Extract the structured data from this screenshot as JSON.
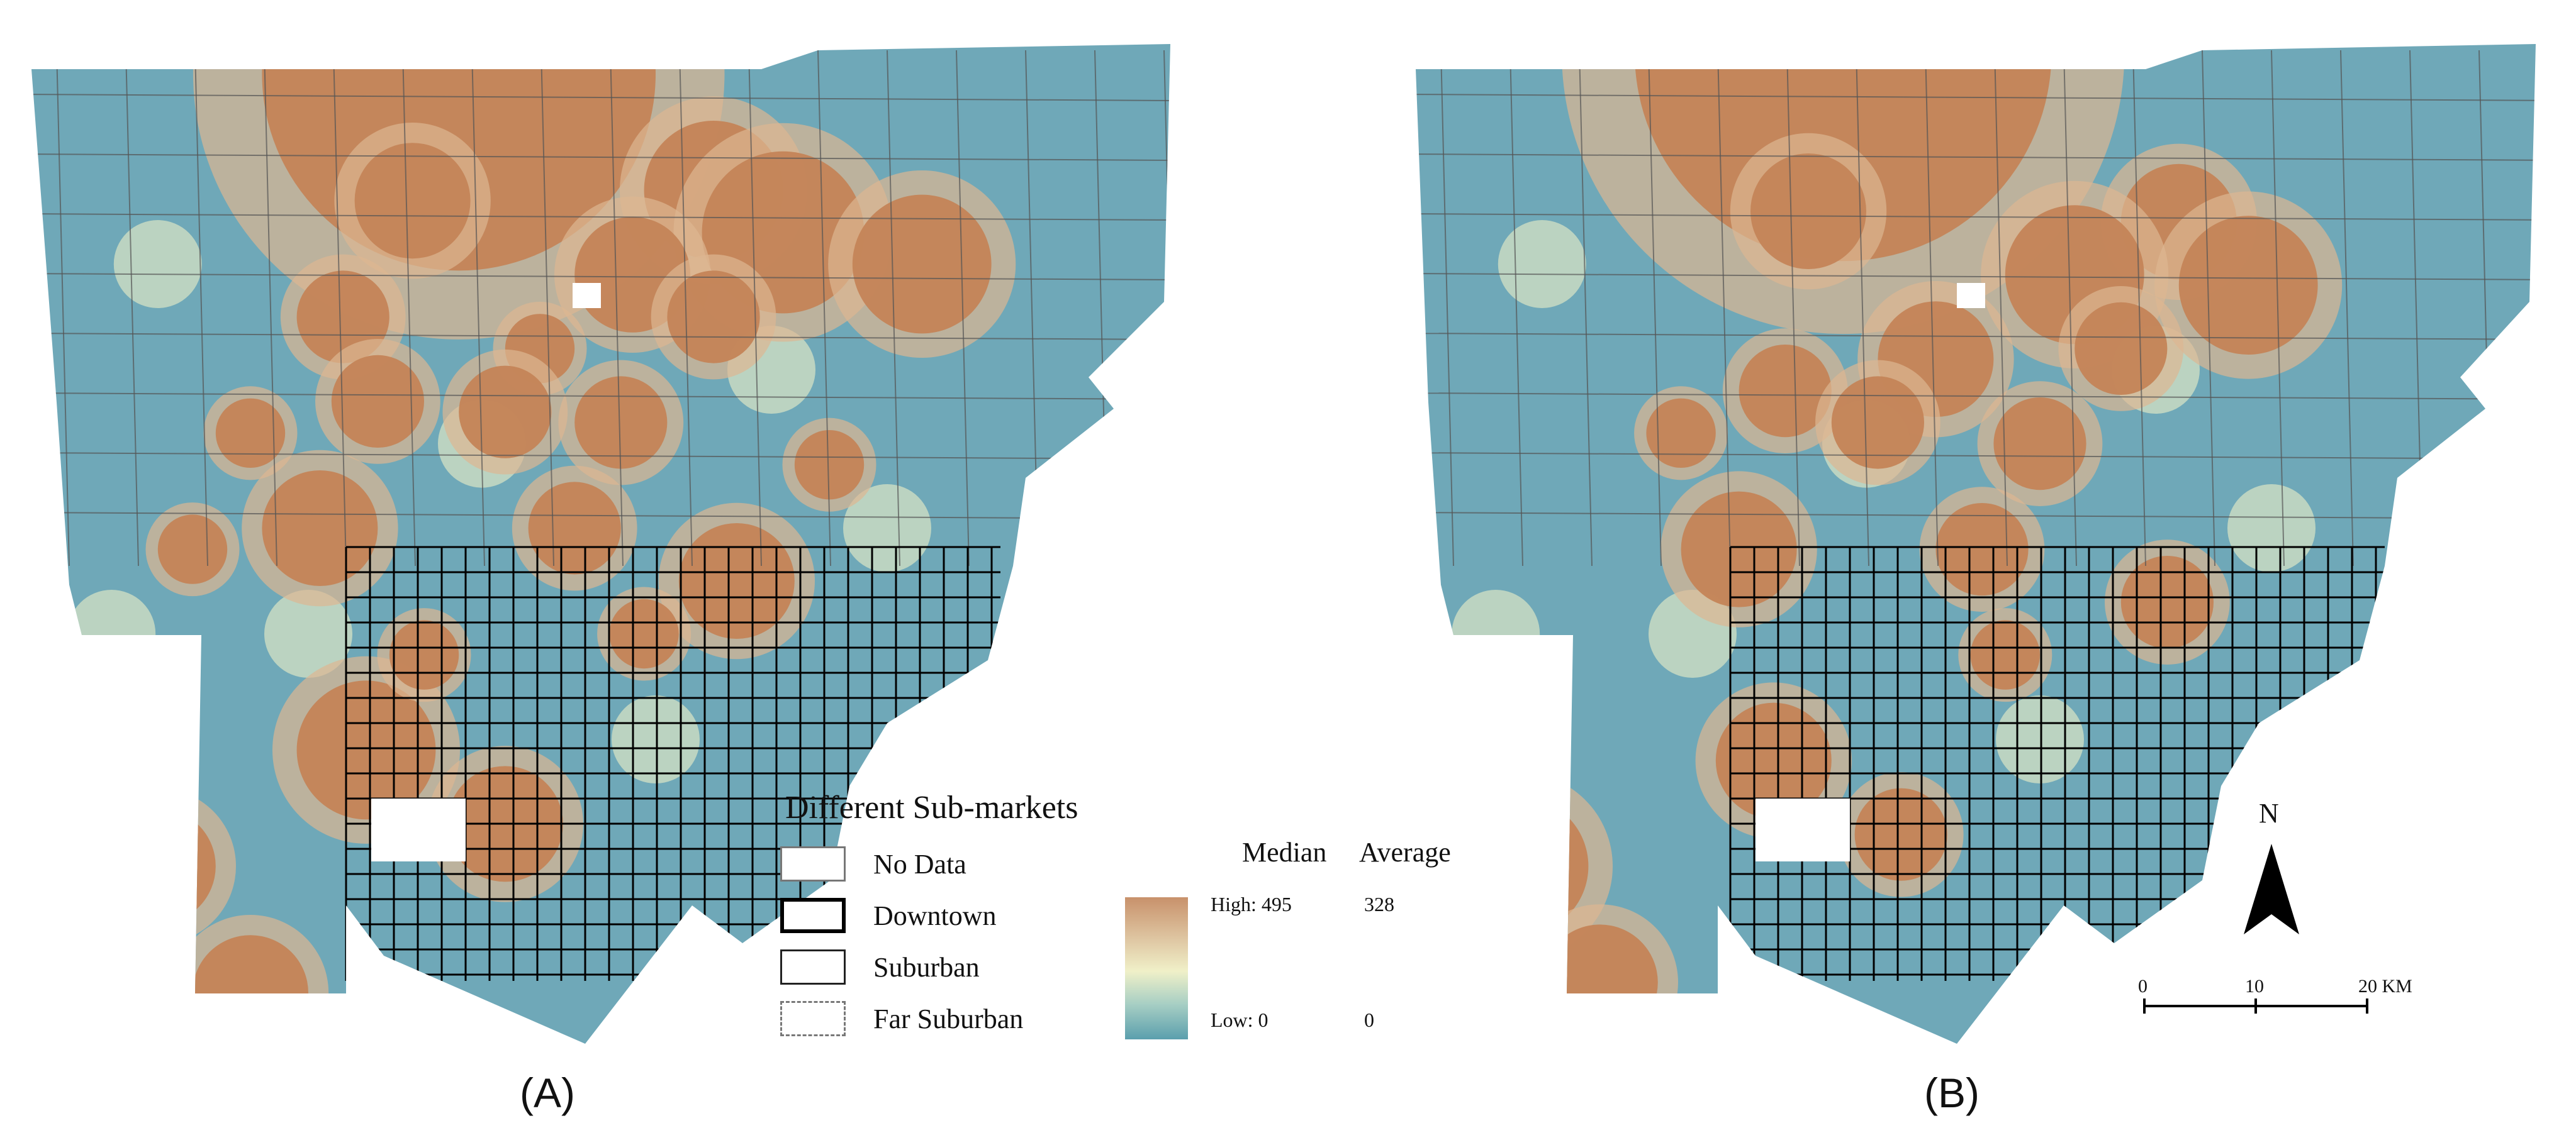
{
  "panels": [
    {
      "label": "(A)"
    },
    {
      "label": "(B)"
    }
  ],
  "legend": {
    "title": "Different Sub-markets",
    "items": [
      {
        "label": "No Data",
        "style": "no-data"
      },
      {
        "label": "Downtown",
        "style": "downtown"
      },
      {
        "label": "Suburban",
        "style": "suburban"
      },
      {
        "label": "Far Suburban",
        "style": "far-suburban"
      }
    ]
  },
  "color_scale": {
    "col_median": "Median",
    "col_average": "Average",
    "median_high": "High: 495",
    "median_low": "Low: 0",
    "average_high": "328",
    "average_low": "0",
    "colors": {
      "high": "#c8916b",
      "mid": "#f0f0c8",
      "low": "#5b9fad"
    }
  },
  "north_arrow": {
    "label": "N"
  },
  "scale_bar": {
    "ticks": [
      "0",
      "10",
      "20 KM"
    ]
  },
  "colors": {
    "base": "#6fa8b8",
    "hot": "#c48457",
    "warm": "#ddb792",
    "light": "#eef0c6",
    "downtown_line": "#000000",
    "suburban_line": "#555555"
  },
  "hotspots_A": [
    [
      0.38,
      0.07,
      0.17
    ],
    [
      0.6,
      0.18,
      0.06
    ],
    [
      0.34,
      0.19,
      0.05
    ],
    [
      0.66,
      0.22,
      0.07
    ],
    [
      0.53,
      0.26,
      0.05
    ],
    [
      0.78,
      0.25,
      0.06
    ],
    [
      0.6,
      0.3,
      0.04
    ],
    [
      0.28,
      0.3,
      0.04
    ],
    [
      0.45,
      0.33,
      0.03
    ],
    [
      0.31,
      0.38,
      0.04
    ],
    [
      0.42,
      0.39,
      0.04
    ],
    [
      0.52,
      0.4,
      0.04
    ],
    [
      0.2,
      0.41,
      0.03
    ],
    [
      0.26,
      0.5,
      0.05
    ],
    [
      0.48,
      0.5,
      0.04
    ],
    [
      0.62,
      0.55,
      0.05
    ],
    [
      0.3,
      0.71,
      0.06
    ],
    [
      0.42,
      0.78,
      0.05
    ],
    [
      0.12,
      0.82,
      0.05
    ],
    [
      0.2,
      0.94,
      0.05
    ],
    [
      0.35,
      0.62,
      0.03
    ],
    [
      0.54,
      0.6,
      0.03
    ],
    [
      0.7,
      0.44,
      0.03
    ],
    [
      0.15,
      0.52,
      0.03
    ]
  ],
  "hotspots_B": [
    [
      0.38,
      0.05,
      0.18
    ],
    [
      0.67,
      0.21,
      0.05
    ],
    [
      0.35,
      0.2,
      0.05
    ],
    [
      0.58,
      0.26,
      0.06
    ],
    [
      0.73,
      0.27,
      0.06
    ],
    [
      0.62,
      0.33,
      0.04
    ],
    [
      0.46,
      0.34,
      0.05
    ],
    [
      0.33,
      0.37,
      0.04
    ],
    [
      0.41,
      0.4,
      0.04
    ],
    [
      0.55,
      0.42,
      0.04
    ],
    [
      0.24,
      0.41,
      0.03
    ],
    [
      0.29,
      0.52,
      0.05
    ],
    [
      0.5,
      0.52,
      0.04
    ],
    [
      0.66,
      0.57,
      0.04
    ],
    [
      0.32,
      0.72,
      0.05
    ],
    [
      0.43,
      0.79,
      0.04
    ],
    [
      0.1,
      0.82,
      0.06
    ],
    [
      0.17,
      0.93,
      0.05
    ],
    [
      0.52,
      0.62,
      0.03
    ]
  ]
}
